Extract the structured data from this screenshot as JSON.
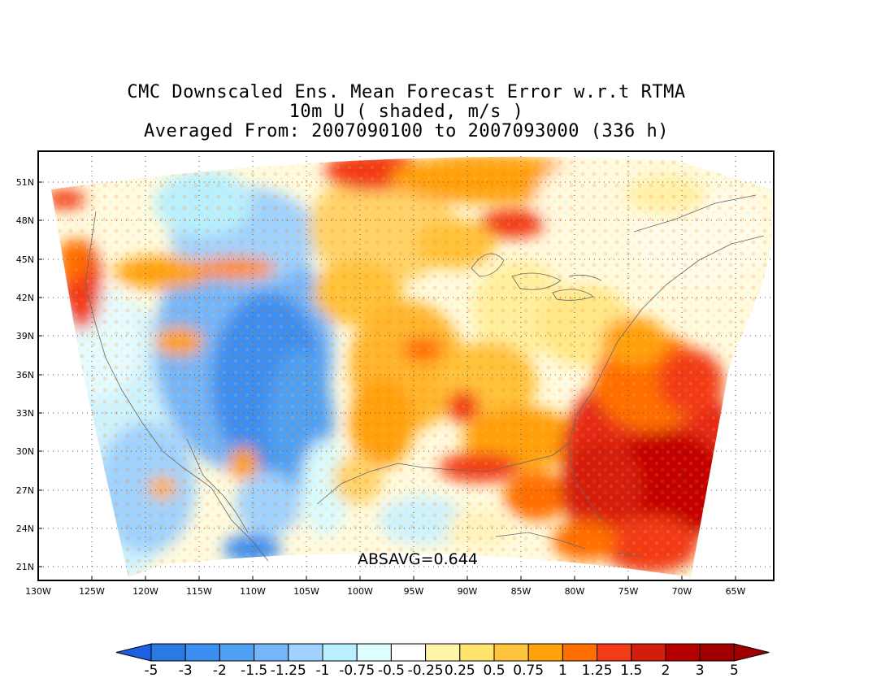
{
  "title": {
    "line1": "CMC Downscaled Ens. Mean Forecast Error w.r.t RTMA",
    "line2": "10m U ( shaded, m/s )",
    "line3": "Averaged From: 2007090100 to 2007093000 (336 h)"
  },
  "map": {
    "lat_labels": [
      "51N",
      "48N",
      "45N",
      "42N",
      "39N",
      "36N",
      "33N",
      "30N",
      "27N",
      "24N",
      "21N"
    ],
    "lon_labels": [
      "130W",
      "125W",
      "120W",
      "115W",
      "110W",
      "105W",
      "100W",
      "95W",
      "90W",
      "85W",
      "80W",
      "75W",
      "70W",
      "65W"
    ],
    "annotation": "ABSAVG=0.644",
    "grid": "dotted",
    "colors": {
      "strong_negative": "#2a7ae2",
      "moderate_negative": "#9fd2ff",
      "weak_negative": "#d9fbff",
      "weak_positive": "#fff4a8",
      "moderate_positive": "#ffa10a",
      "strong_positive": "#c30000"
    }
  },
  "colorbar": {
    "labels": [
      "-5",
      "-3",
      "-2",
      "-1.5",
      "-1.25",
      "-1",
      "-0.75",
      "-0.5",
      "-0.25",
      "0.25",
      "0.5",
      "0.75",
      "1",
      "1.25",
      "1.5",
      "2",
      "3",
      "5"
    ],
    "colors": [
      "#1e5fe3",
      "#2a7ae2",
      "#3c8ef0",
      "#4fa0f3",
      "#74b6f9",
      "#9fd2ff",
      "#b8f0ff",
      "#dcfeff",
      "#ffffff",
      "#fff4a8",
      "#ffe36c",
      "#ffc43d",
      "#ffa10a",
      "#ff6e00",
      "#f23b17",
      "#d51d0d",
      "#b40000",
      "#a00000"
    ],
    "left_arrow_color": "#1e5fe3",
    "right_arrow_color": "#a00000"
  }
}
